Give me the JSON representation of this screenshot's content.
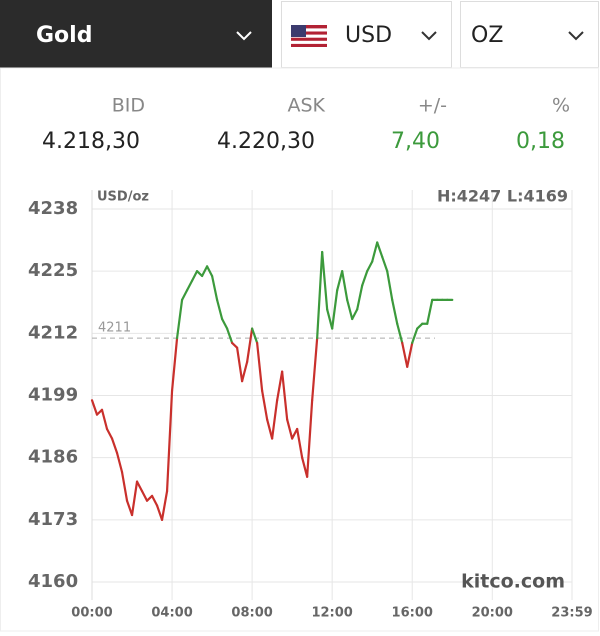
{
  "selectors": [
    "Gold",
    "USD",
    "OZ"
  ],
  "quote": {
    "headers": [
      "BID",
      "ASK",
      "+/-",
      "%"
    ],
    "values": [
      "4.218,30",
      "4.220,30",
      "7,40",
      "0,18"
    ]
  },
  "chart_data": {
    "type": "line",
    "unit_label": "USD/oz",
    "high_low": "H:4247 L:4169",
    "watermark": "kitco.com",
    "reference": 4211,
    "color_above": "#3c9a3c",
    "color_below": "#c9302c",
    "grid": true,
    "xlim": [
      0,
      23.983
    ],
    "xticks": [
      {
        "value": 0,
        "label": "00:00"
      },
      {
        "value": 4,
        "label": "04:00"
      },
      {
        "value": 8,
        "label": "08:00"
      },
      {
        "value": 12,
        "label": "12:00"
      },
      {
        "value": 16,
        "label": "16:00"
      },
      {
        "value": 20,
        "label": "20:00"
      },
      {
        "value": 23.983,
        "label": "23:59"
      }
    ],
    "ylim": [
      4160,
      4238
    ],
    "yticks": [
      4160,
      4173,
      4186,
      4199,
      4212,
      4225,
      4238
    ],
    "x": [
      0,
      0.25,
      0.5,
      0.75,
      1,
      1.25,
      1.5,
      1.75,
      2,
      2.25,
      2.5,
      2.75,
      3,
      3.25,
      3.5,
      3.75,
      4,
      4.25,
      4.5,
      4.75,
      5,
      5.25,
      5.5,
      5.75,
      6,
      6.25,
      6.5,
      6.75,
      7,
      7.25,
      7.5,
      7.75,
      8,
      8.25,
      8.5,
      8.75,
      9,
      9.25,
      9.5,
      9.75,
      10,
      10.25,
      10.5,
      10.75,
      11,
      11.25,
      11.5,
      11.75,
      12,
      12.25,
      12.5,
      12.75,
      13,
      13.25,
      13.5,
      13.75,
      14,
      14.25,
      14.5,
      14.75,
      15,
      15.25,
      15.5,
      15.75,
      16,
      16.25,
      16.5,
      16.75,
      17,
      17.25,
      17.5,
      17.75,
      18
    ],
    "values": [
      4198,
      4195,
      4196,
      4192,
      4190,
      4187,
      4183,
      4177,
      4174,
      4181,
      4179,
      4177,
      4178,
      4176,
      4173,
      4179,
      4200,
      4211,
      4219,
      4221,
      4223,
      4225,
      4224,
      4226,
      4224,
      4219,
      4215,
      4213,
      4210,
      4209,
      4202,
      4206,
      4213,
      4210,
      4200,
      4194,
      4190,
      4198,
      4204,
      4194,
      4190,
      4192,
      4186,
      4182,
      4198,
      4211,
      4229,
      4217,
      4213,
      4221,
      4225,
      4219,
      4215,
      4217,
      4222,
      4225,
      4227,
      4231,
      4228,
      4225,
      4219,
      4214,
      4210,
      4205,
      4210,
      4213,
      4214,
      4214,
      4219,
      4219,
      4219,
      4219,
      4219
    ]
  }
}
